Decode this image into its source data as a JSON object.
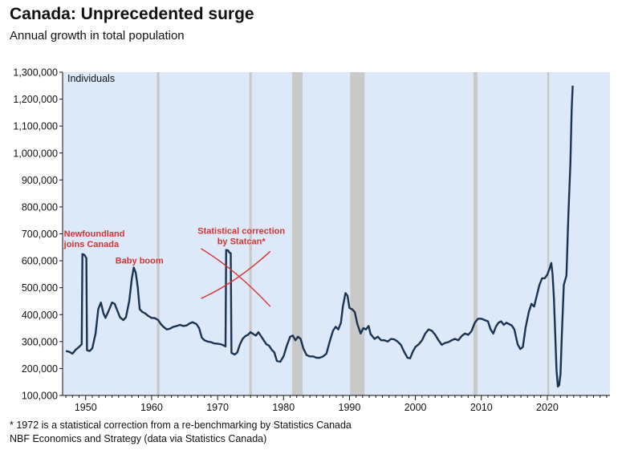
{
  "header": {
    "title": "Canada: Unprecedented surge",
    "subtitle": "Annual growth in total population"
  },
  "footer": {
    "note": "* 1972 is a statistical correction from a re-benchmarking by Statistics Canada",
    "source": "NBF Economics and Strategy (data via Statistics Canada)"
  },
  "colors": {
    "plot_bg": "#dde9f9",
    "line": "#1b3350",
    "recession": "#c9c9c9",
    "annotation": "#d63333"
  },
  "chart_data": {
    "type": "line",
    "title": "Canada: Unprecedented surge",
    "subtitle": "Annual growth in total population",
    "ylabel": "Individuals",
    "xlabel": "",
    "xlim": [
      1946.5,
      2029.5
    ],
    "ylim": [
      100000,
      1300000
    ],
    "xticks": [
      1950,
      1960,
      1970,
      1980,
      1990,
      2000,
      2010,
      2020
    ],
    "yticks": [
      100000,
      200000,
      300000,
      400000,
      500000,
      600000,
      700000,
      800000,
      900000,
      1000000,
      1100000,
      1200000,
      1300000
    ],
    "ytick_labels": [
      "100,000",
      "200,000",
      "300,000",
      "400,000",
      "500,000",
      "600,000",
      "700,000",
      "800,000",
      "900,000",
      "1,000,000",
      "1,100,000",
      "1,200,000",
      "1,300,000"
    ],
    "grid": false,
    "recessions": [
      [
        1960.8,
        1961.2
      ],
      [
        1974.8,
        1975.2
      ],
      [
        1981.3,
        1982.9
      ],
      [
        1990.1,
        1992.3
      ],
      [
        2008.8,
        2009.4
      ],
      [
        2020.0,
        2020.3
      ]
    ],
    "annotations": [
      {
        "lines": [
          "Newfoundland",
          "joins Canada"
        ],
        "x": 1946.7,
        "y": 690000,
        "anchor": "start"
      },
      {
        "lines": [
          "Baby boom"
        ],
        "x": 1954.5,
        "y": 590000,
        "anchor": "start"
      },
      {
        "lines": [
          "Statistical correction",
          "by Statcan*"
        ],
        "x": 1973.6,
        "y": 700000,
        "anchor": "middle"
      }
    ],
    "cross_mark": {
      "line1": [
        [
          1967.5,
          460000
        ],
        [
          1978.0,
          635000
        ]
      ],
      "line2": [
        [
          1967.5,
          645000
        ],
        [
          1978.0,
          430000
        ]
      ]
    },
    "series": [
      {
        "values": [
          [
            1947.0,
            265000
          ],
          [
            1947.5,
            262000
          ],
          [
            1948.0,
            255000
          ],
          [
            1948.5,
            270000
          ],
          [
            1949.0,
            280000
          ],
          [
            1949.4,
            290000
          ],
          [
            1949.5,
            625000
          ],
          [
            1949.8,
            622000
          ],
          [
            1950.1,
            610000
          ],
          [
            1950.2,
            268000
          ],
          [
            1950.6,
            265000
          ],
          [
            1951.0,
            275000
          ],
          [
            1951.5,
            330000
          ],
          [
            1951.9,
            420000
          ],
          [
            1952.3,
            445000
          ],
          [
            1952.7,
            405000
          ],
          [
            1953.0,
            388000
          ],
          [
            1953.5,
            415000
          ],
          [
            1954.0,
            445000
          ],
          [
            1954.4,
            440000
          ],
          [
            1954.8,
            415000
          ],
          [
            1955.2,
            390000
          ],
          [
            1955.7,
            380000
          ],
          [
            1956.1,
            390000
          ],
          [
            1956.6,
            450000
          ],
          [
            1957.0,
            535000
          ],
          [
            1957.3,
            575000
          ],
          [
            1957.6,
            555000
          ],
          [
            1957.9,
            500000
          ],
          [
            1958.2,
            420000
          ],
          [
            1958.6,
            410000
          ],
          [
            1959.0,
            405000
          ],
          [
            1959.5,
            395000
          ],
          [
            1960.0,
            388000
          ],
          [
            1960.5,
            387000
          ],
          [
            1961.0,
            380000
          ],
          [
            1961.4,
            365000
          ],
          [
            1961.8,
            355000
          ],
          [
            1962.3,
            345000
          ],
          [
            1962.8,
            348000
          ],
          [
            1963.3,
            355000
          ],
          [
            1963.8,
            358000
          ],
          [
            1964.3,
            362000
          ],
          [
            1964.8,
            358000
          ],
          [
            1965.3,
            360000
          ],
          [
            1965.8,
            368000
          ],
          [
            1966.2,
            372000
          ],
          [
            1966.8,
            365000
          ],
          [
            1967.2,
            350000
          ],
          [
            1967.6,
            315000
          ],
          [
            1968.0,
            305000
          ],
          [
            1968.5,
            300000
          ],
          [
            1969.0,
            298000
          ],
          [
            1969.5,
            293000
          ],
          [
            1970.0,
            292000
          ],
          [
            1970.5,
            290000
          ],
          [
            1971.0,
            285000
          ],
          [
            1971.2,
            282000
          ],
          [
            1971.3,
            640000
          ],
          [
            1971.6,
            638000
          ],
          [
            1971.8,
            630000
          ],
          [
            1972.0,
            628000
          ],
          [
            1972.1,
            258000
          ],
          [
            1972.6,
            252000
          ],
          [
            1973.0,
            260000
          ],
          [
            1973.4,
            290000
          ],
          [
            1973.8,
            310000
          ],
          [
            1974.2,
            320000
          ],
          [
            1974.6,
            325000
          ],
          [
            1975.0,
            335000
          ],
          [
            1975.4,
            328000
          ],
          [
            1975.8,
            322000
          ],
          [
            1976.2,
            335000
          ],
          [
            1976.6,
            320000
          ],
          [
            1977.0,
            305000
          ],
          [
            1977.4,
            290000
          ],
          [
            1977.8,
            285000
          ],
          [
            1978.2,
            270000
          ],
          [
            1978.6,
            260000
          ],
          [
            1979.0,
            228000
          ],
          [
            1979.5,
            225000
          ],
          [
            1980.0,
            245000
          ],
          [
            1980.5,
            285000
          ],
          [
            1981.0,
            318000
          ],
          [
            1981.4,
            322000
          ],
          [
            1981.8,
            305000
          ],
          [
            1982.2,
            318000
          ],
          [
            1982.6,
            310000
          ],
          [
            1983.0,
            275000
          ],
          [
            1983.5,
            250000
          ],
          [
            1984.0,
            245000
          ],
          [
            1984.5,
            245000
          ],
          [
            1985.0,
            240000
          ],
          [
            1985.5,
            240000
          ],
          [
            1986.0,
            245000
          ],
          [
            1986.5,
            255000
          ],
          [
            1987.0,
            300000
          ],
          [
            1987.5,
            340000
          ],
          [
            1987.9,
            355000
          ],
          [
            1988.3,
            345000
          ],
          [
            1988.7,
            370000
          ],
          [
            1989.0,
            430000
          ],
          [
            1989.4,
            480000
          ],
          [
            1989.7,
            470000
          ],
          [
            1990.0,
            425000
          ],
          [
            1990.4,
            420000
          ],
          [
            1990.8,
            410000
          ],
          [
            1991.2,
            365000
          ],
          [
            1991.7,
            330000
          ],
          [
            1992.1,
            350000
          ],
          [
            1992.5,
            345000
          ],
          [
            1992.9,
            358000
          ],
          [
            1993.2,
            328000
          ],
          [
            1993.8,
            310000
          ],
          [
            1994.3,
            318000
          ],
          [
            1994.8,
            305000
          ],
          [
            1995.3,
            305000
          ],
          [
            1995.8,
            300000
          ],
          [
            1996.3,
            310000
          ],
          [
            1996.8,
            308000
          ],
          [
            1997.3,
            300000
          ],
          [
            1997.8,
            288000
          ],
          [
            1998.3,
            262000
          ],
          [
            1998.8,
            240000
          ],
          [
            1999.2,
            238000
          ],
          [
            1999.6,
            262000
          ],
          [
            2000.0,
            280000
          ],
          [
            2000.5,
            290000
          ],
          [
            2001.0,
            305000
          ],
          [
            2001.5,
            330000
          ],
          [
            2002.0,
            345000
          ],
          [
            2002.5,
            340000
          ],
          [
            2003.0,
            325000
          ],
          [
            2003.5,
            305000
          ],
          [
            2004.0,
            288000
          ],
          [
            2004.5,
            295000
          ],
          [
            2005.0,
            298000
          ],
          [
            2005.5,
            305000
          ],
          [
            2006.0,
            310000
          ],
          [
            2006.5,
            305000
          ],
          [
            2007.0,
            320000
          ],
          [
            2007.5,
            330000
          ],
          [
            2008.0,
            325000
          ],
          [
            2008.5,
            338000
          ],
          [
            2009.0,
            370000
          ],
          [
            2009.5,
            385000
          ],
          [
            2010.0,
            385000
          ],
          [
            2010.5,
            380000
          ],
          [
            2011.0,
            375000
          ],
          [
            2011.4,
            345000
          ],
          [
            2011.8,
            330000
          ],
          [
            2012.2,
            355000
          ],
          [
            2012.6,
            370000
          ],
          [
            2013.0,
            375000
          ],
          [
            2013.4,
            362000
          ],
          [
            2013.8,
            370000
          ],
          [
            2014.2,
            365000
          ],
          [
            2014.6,
            360000
          ],
          [
            2015.0,
            345000
          ],
          [
            2015.5,
            290000
          ],
          [
            2015.9,
            272000
          ],
          [
            2016.3,
            280000
          ],
          [
            2016.7,
            350000
          ],
          [
            2017.2,
            410000
          ],
          [
            2017.6,
            440000
          ],
          [
            2018.0,
            430000
          ],
          [
            2018.4,
            470000
          ],
          [
            2018.8,
            510000
          ],
          [
            2019.2,
            535000
          ],
          [
            2019.6,
            535000
          ],
          [
            2020.0,
            548000
          ],
          [
            2020.4,
            575000
          ],
          [
            2020.6,
            592000
          ],
          [
            2020.8,
            550000
          ],
          [
            2021.0,
            460000
          ],
          [
            2021.2,
            330000
          ],
          [
            2021.4,
            195000
          ],
          [
            2021.6,
            133000
          ],
          [
            2021.8,
            138000
          ],
          [
            2022.0,
            180000
          ],
          [
            2022.2,
            320000
          ],
          [
            2022.5,
            510000
          ],
          [
            2022.9,
            545000
          ],
          [
            2023.2,
            770000
          ],
          [
            2023.5,
            960000
          ],
          [
            2023.7,
            1160000
          ],
          [
            2023.85,
            1250000
          ]
        ]
      }
    ]
  }
}
